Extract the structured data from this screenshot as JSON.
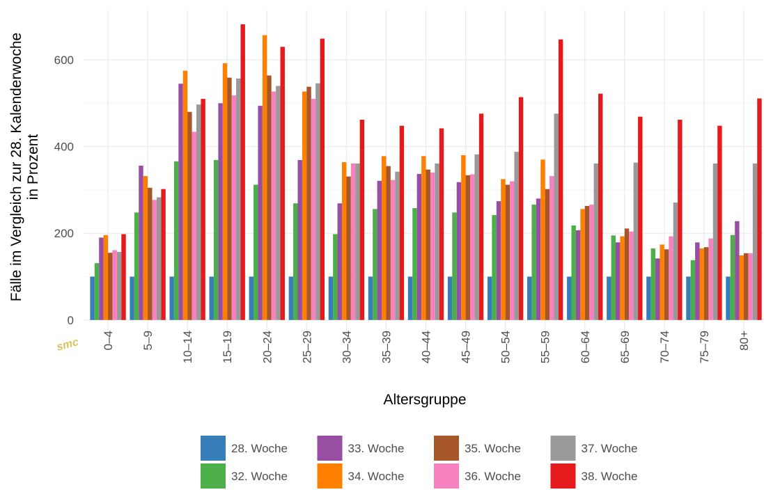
{
  "chart_data": {
    "type": "bar",
    "x_label": "Altersgruppe",
    "y_label": [
      "Fälle im Vergleich zur 28. Kalenderwoche",
      "in Prozent"
    ],
    "logo": "smc",
    "categories": [
      "0–4",
      "5–9",
      "10–14",
      "15–19",
      "20–24",
      "25–29",
      "30–34",
      "35–39",
      "40–44",
      "45–49",
      "50–54",
      "55–59",
      "60–64",
      "65–69",
      "70–74",
      "75–79",
      "80+"
    ],
    "ylim": [
      -34,
      714
    ],
    "yticks": [
      0,
      200,
      400,
      600
    ],
    "grid": true,
    "series": [
      {
        "name": "28. Woche",
        "color": "#377eb8",
        "values": [
          100,
          100,
          100,
          100,
          100,
          100,
          100,
          100,
          100,
          100,
          100,
          100,
          100,
          100,
          100,
          100,
          100
        ]
      },
      {
        "name": "32. Woche",
        "color": "#4daf4a",
        "values": [
          131,
          248,
          366,
          369,
          312,
          269,
          198,
          256,
          258,
          248,
          242,
          266,
          218,
          195,
          165,
          138,
          196
        ]
      },
      {
        "name": "33. Woche",
        "color": "#984ea3",
        "values": [
          190,
          356,
          545,
          500,
          494,
          369,
          269,
          321,
          337,
          318,
          274,
          280,
          207,
          179,
          142,
          179,
          228
        ]
      },
      {
        "name": "34. Woche",
        "color": "#ff7f00",
        "values": [
          196,
          332,
          575,
          592,
          657,
          527,
          364,
          378,
          378,
          380,
          325,
          370,
          256,
          193,
          174,
          165,
          149
        ]
      },
      {
        "name": "35. Woche",
        "color": "#a65628",
        "values": [
          155,
          305,
          480,
          559,
          564,
          538,
          331,
          355,
          347,
          334,
          312,
          302,
          263,
          211,
          163,
          168,
          154
        ]
      },
      {
        "name": "36. Woche",
        "color": "#f781bf",
        "values": [
          161,
          277,
          434,
          518,
          527,
          510,
          361,
          323,
          340,
          336,
          320,
          332,
          266,
          204,
          193,
          188,
          154
        ]
      },
      {
        "name": "37. Woche",
        "color": "#999999",
        "values": [
          157,
          283,
          497,
          557,
          540,
          546,
          361,
          342,
          361,
          382,
          388,
          476,
          361,
          363,
          271,
          361,
          361
        ]
      },
      {
        "name": "38. Woche",
        "color": "#e41a1c",
        "values": [
          198,
          302,
          510,
          682,
          630,
          649,
          462,
          448,
          442,
          476,
          514,
          647,
          522,
          469,
          462,
          448,
          511
        ]
      }
    ]
  }
}
